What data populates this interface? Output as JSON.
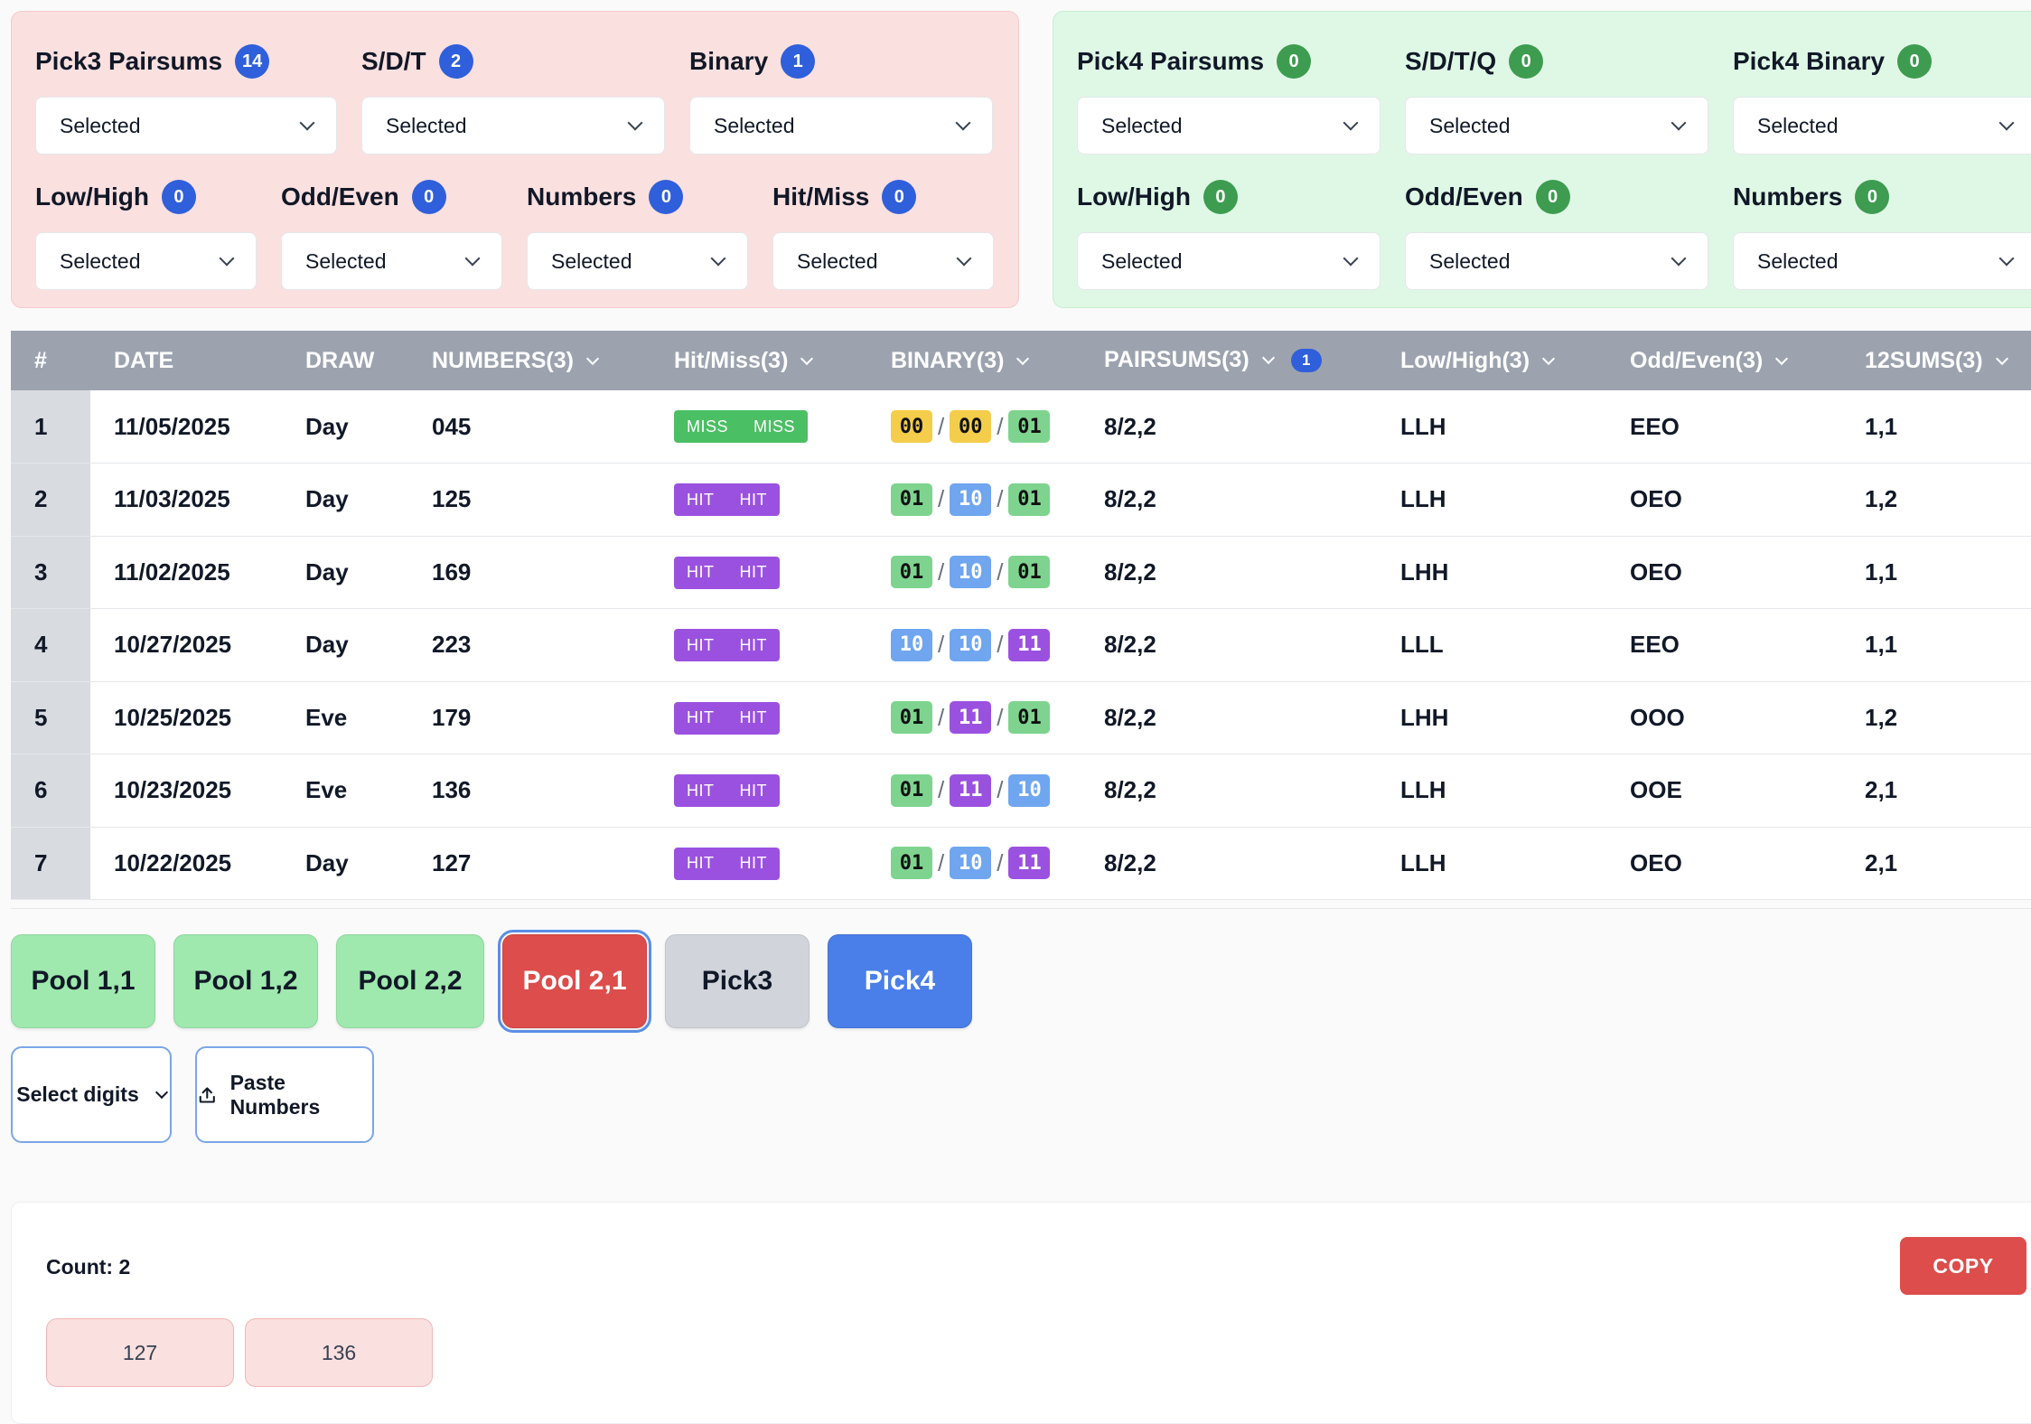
{
  "pick3_filters": {
    "row1": [
      {
        "label": "Pick3 Pairsums",
        "count": "14",
        "value": "Selected",
        "width": 334
      },
      {
        "label": "S/D/T",
        "count": "2",
        "value": "Selected",
        "width": 336
      },
      {
        "label": "Binary",
        "count": "1",
        "value": "Selected",
        "width": 336
      }
    ],
    "row2": [
      {
        "label": "Low/High",
        "count": "0",
        "value": "Selected",
        "width": 245
      },
      {
        "label": "Odd/Even",
        "count": "0",
        "value": "Selected",
        "width": 245
      },
      {
        "label": "Numbers",
        "count": "0",
        "value": "Selected",
        "width": 245
      },
      {
        "label": "Hit/Miss",
        "count": "0",
        "value": "Selected",
        "width": 245
      }
    ]
  },
  "pick4_filters": {
    "row1": [
      {
        "label": "Pick4 Pairsums",
        "count": "0",
        "value": "Selected",
        "width": 336
      },
      {
        "label": "S/D/T/Q",
        "count": "0",
        "value": "Selected",
        "width": 336
      },
      {
        "label": "Pick4 Binary",
        "count": "0",
        "value": "Selected",
        "width": 336
      }
    ],
    "row2": [
      {
        "label": "Low/High",
        "count": "0",
        "value": "Selected",
        "width": 336
      },
      {
        "label": "Odd/Even",
        "count": "0",
        "value": "Selected",
        "width": 336
      },
      {
        "label": "Numbers",
        "count": "0",
        "value": "Selected",
        "width": 336
      }
    ]
  },
  "table": {
    "headers": {
      "idx": "#",
      "date": "DATE",
      "draw": "DRAW",
      "numbers": "NUMBERS(3)",
      "hitmiss": "Hit/Miss(3)",
      "binary": "BINARY(3)",
      "pairsums": "PAIRSUMS(3)",
      "pairsums_badge": "1",
      "lowhigh": "Low/High(3)",
      "oddeven": "Odd/Even(3)",
      "sums12": "12SUMS(3)"
    },
    "rows": [
      {
        "idx": "1",
        "date": "11/05/2025",
        "draw": "Day",
        "numbers": "045",
        "hm": [
          "MISS",
          "MISS"
        ],
        "hm_type": "miss",
        "binary": [
          "00",
          "00",
          "01"
        ],
        "pairsums": "8/2,2",
        "lowhigh": "LLH",
        "oddeven": "EEO",
        "sums12": "1,1"
      },
      {
        "idx": "2",
        "date": "11/03/2025",
        "draw": "Day",
        "numbers": "125",
        "hm": [
          "HIT",
          "HIT"
        ],
        "hm_type": "hit",
        "binary": [
          "01",
          "10",
          "01"
        ],
        "pairsums": "8/2,2",
        "lowhigh": "LLH",
        "oddeven": "OEO",
        "sums12": "1,2"
      },
      {
        "idx": "3",
        "date": "11/02/2025",
        "draw": "Day",
        "numbers": "169",
        "hm": [
          "HIT",
          "HIT"
        ],
        "hm_type": "hit",
        "binary": [
          "01",
          "10",
          "01"
        ],
        "pairsums": "8/2,2",
        "lowhigh": "LHH",
        "oddeven": "OEO",
        "sums12": "1,1"
      },
      {
        "idx": "4",
        "date": "10/27/2025",
        "draw": "Day",
        "numbers": "223",
        "hm": [
          "HIT",
          "HIT"
        ],
        "hm_type": "hit",
        "binary": [
          "10",
          "10",
          "11"
        ],
        "pairsums": "8/2,2",
        "lowhigh": "LLL",
        "oddeven": "EEO",
        "sums12": "1,1"
      },
      {
        "idx": "5",
        "date": "10/25/2025",
        "draw": "Eve",
        "numbers": "179",
        "hm": [
          "HIT",
          "HIT"
        ],
        "hm_type": "hit",
        "binary": [
          "01",
          "11",
          "01"
        ],
        "pairsums": "8/2,2",
        "lowhigh": "LHH",
        "oddeven": "OOO",
        "sums12": "1,2"
      },
      {
        "idx": "6",
        "date": "10/23/2025",
        "draw": "Eve",
        "numbers": "136",
        "hm": [
          "HIT",
          "HIT"
        ],
        "hm_type": "hit",
        "binary": [
          "01",
          "11",
          "10"
        ],
        "pairsums": "8/2,2",
        "lowhigh": "LLH",
        "oddeven": "OOE",
        "sums12": "2,1"
      },
      {
        "idx": "7",
        "date": "10/22/2025",
        "draw": "Day",
        "numbers": "127",
        "hm": [
          "HIT",
          "HIT"
        ],
        "hm_type": "hit",
        "binary": [
          "01",
          "10",
          "11"
        ],
        "pairsums": "8/2,2",
        "lowhigh": "LLH",
        "oddeven": "OEO",
        "sums12": "2,1"
      }
    ]
  },
  "pools": [
    {
      "label": "Pool 1,1",
      "style": "g",
      "width": 160
    },
    {
      "label": "Pool 1,2",
      "style": "g",
      "width": 160
    },
    {
      "label": "Pool 2,2",
      "style": "g",
      "width": 164
    },
    {
      "label": "Pool 2,1",
      "style": "r",
      "width": 160
    },
    {
      "label": "Pick3",
      "style": "gray",
      "width": 160
    },
    {
      "label": "Pick4",
      "style": "b",
      "width": 160
    }
  ],
  "actions": {
    "select_digits": "Select digits",
    "paste_numbers": "Paste Numbers"
  },
  "result": {
    "count_label": "Count: 2",
    "copy_label": "COPY",
    "numbers": [
      "127",
      "136"
    ]
  },
  "colors": {
    "hit": "#9b51e0",
    "miss": "#4bbf64",
    "bin_00": "#f4cd4a",
    "bin_01": "#7ed48f",
    "bin_10": "#6fa6ef",
    "bin_11": "#9b51e0",
    "accent_blue": "#2f5fdb",
    "accent_green": "#3d9c50",
    "danger": "#dc4d4b"
  }
}
